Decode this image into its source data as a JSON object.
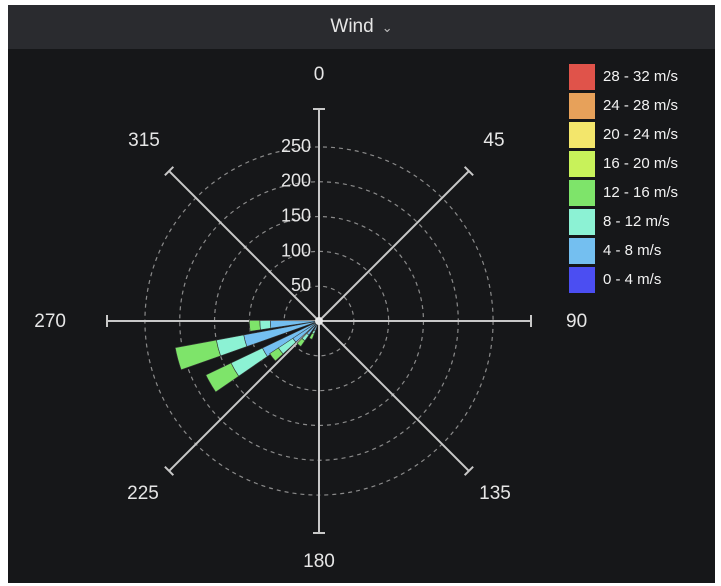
{
  "panel": {
    "title": "Wind",
    "title_icon": "chevron-down-icon"
  },
  "chart_data": {
    "type": "polar-bar",
    "title": "",
    "direction_labels": [
      "0",
      "45",
      "90",
      "135",
      "180",
      "225",
      "270",
      "315"
    ],
    "radial_ticks": [
      "50",
      "100",
      "150",
      "200",
      "250"
    ],
    "radial_max": 270,
    "grid": true,
    "legend_position": "top-right",
    "bins": [
      {
        "label": "28 - 32 m/s",
        "color": "#e0534a"
      },
      {
        "label": "24 - 28 m/s",
        "color": "#e7a15a"
      },
      {
        "label": "20 - 24 m/s",
        "color": "#f3e66b"
      },
      {
        "label": "16 - 20 m/s",
        "color": "#c8f25a"
      },
      {
        "label": "12 - 16 m/s",
        "color": "#7ee46a"
      },
      {
        "label": "8 - 12 m/s",
        "color": "#8cf2d4"
      },
      {
        "label": "4 - 8 m/s",
        "color": "#74bff0"
      },
      {
        "label": "0 - 4 m/s",
        "color": "#4b4ef2"
      }
    ],
    "sectors": [
      {
        "direction": 255,
        "segments": [
          {
            "bin": "4 - 8 m/s",
            "value": 110
          },
          {
            "bin": "8 - 12 m/s",
            "value": 150
          },
          {
            "bin": "12 - 16 m/s",
            "value": 210
          }
        ]
      },
      {
        "direction": 240,
        "segments": [
          {
            "bin": "4 - 8 m/s",
            "value": 90
          },
          {
            "bin": "8 - 12 m/s",
            "value": 140
          },
          {
            "bin": "12 - 16 m/s",
            "value": 180
          }
        ]
      },
      {
        "direction": 266,
        "segments": [
          {
            "bin": "4 - 8 m/s",
            "value": 70
          },
          {
            "bin": "8 - 12 m/s",
            "value": 85
          },
          {
            "bin": "12 - 16 m/s",
            "value": 100
          }
        ]
      },
      {
        "direction": 232,
        "segments": [
          {
            "bin": "4 - 8 m/s",
            "value": 45
          },
          {
            "bin": "8 - 12 m/s",
            "value": 70
          },
          {
            "bin": "12 - 16 m/s",
            "value": 85
          }
        ]
      },
      {
        "direction": 220,
        "segments": [
          {
            "bin": "4 - 8 m/s",
            "value": 25
          },
          {
            "bin": "8 - 12 m/s",
            "value": 35
          },
          {
            "bin": "12 - 16 m/s",
            "value": 45
          }
        ]
      },
      {
        "direction": 205,
        "segments": [
          {
            "bin": "4 - 8 m/s",
            "value": 15
          },
          {
            "bin": "8 - 12 m/s",
            "value": 20
          },
          {
            "bin": "12 - 16 m/s",
            "value": 28
          }
        ]
      }
    ]
  }
}
